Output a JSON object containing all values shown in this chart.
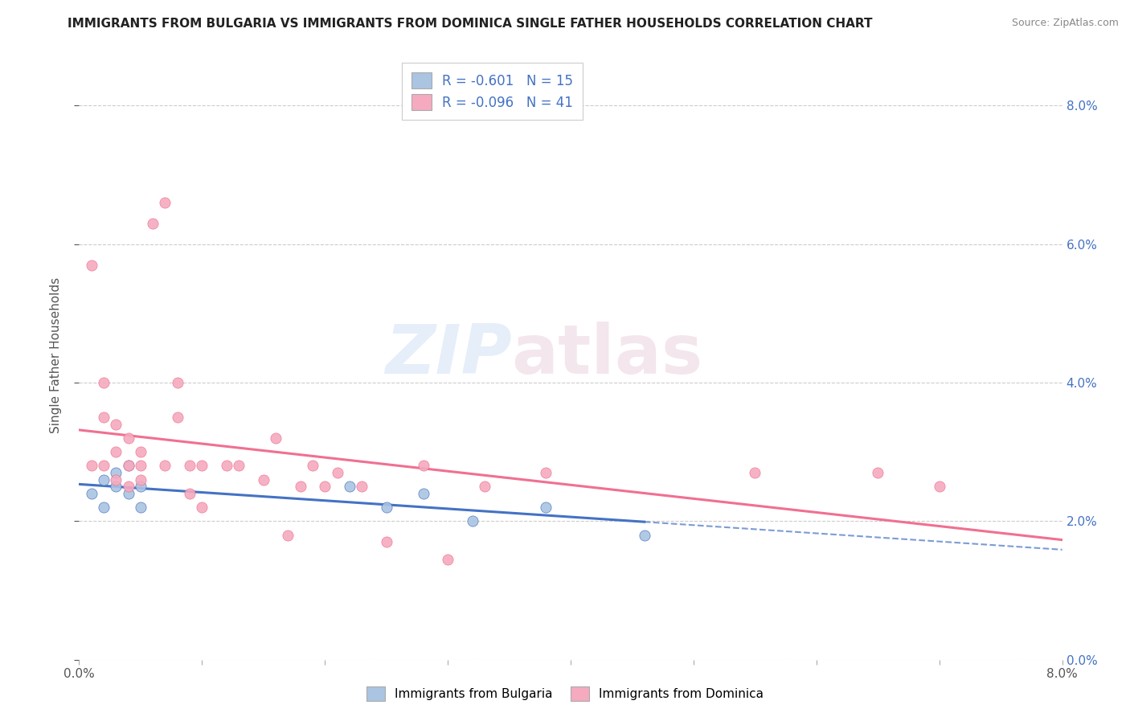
{
  "title": "IMMIGRANTS FROM BULGARIA VS IMMIGRANTS FROM DOMINICA SINGLE FATHER HOUSEHOLDS CORRELATION CHART",
  "source": "Source: ZipAtlas.com",
  "ylabel": "Single Father Households",
  "legend_label1": "Immigrants from Bulgaria",
  "legend_label2": "Immigrants from Dominica",
  "R1": -0.601,
  "N1": 15,
  "R2": -0.096,
  "N2": 41,
  "color1": "#aac4e2",
  "color2": "#f5aabf",
  "line_color1": "#4472c4",
  "line_color2": "#f07090",
  "xlim": [
    0.0,
    0.08
  ],
  "ylim": [
    0.0,
    0.088
  ],
  "xticks": [
    0.0,
    0.01,
    0.02,
    0.03,
    0.04,
    0.05,
    0.06,
    0.07,
    0.08
  ],
  "yticks": [
    0.0,
    0.02,
    0.04,
    0.06,
    0.08
  ],
  "watermark_zip": "ZIP",
  "watermark_atlas": "atlas",
  "bg_color": "#ffffff",
  "grid_color": "#cccccc",
  "bulgaria_x": [
    0.001,
    0.002,
    0.002,
    0.003,
    0.003,
    0.004,
    0.004,
    0.005,
    0.005,
    0.022,
    0.025,
    0.028,
    0.032,
    0.038,
    0.046
  ],
  "bulgaria_y": [
    0.024,
    0.026,
    0.022,
    0.027,
    0.025,
    0.024,
    0.028,
    0.025,
    0.022,
    0.025,
    0.022,
    0.024,
    0.02,
    0.022,
    0.018
  ],
  "dominica_x": [
    0.001,
    0.001,
    0.002,
    0.002,
    0.002,
    0.003,
    0.003,
    0.003,
    0.004,
    0.004,
    0.004,
    0.005,
    0.005,
    0.005,
    0.006,
    0.007,
    0.007,
    0.008,
    0.008,
    0.009,
    0.009,
    0.01,
    0.01,
    0.012,
    0.013,
    0.015,
    0.016,
    0.017,
    0.018,
    0.019,
    0.02,
    0.021,
    0.023,
    0.025,
    0.028,
    0.03,
    0.033,
    0.038,
    0.055,
    0.065,
    0.07
  ],
  "dominica_y": [
    0.028,
    0.057,
    0.04,
    0.035,
    0.028,
    0.034,
    0.03,
    0.026,
    0.032,
    0.028,
    0.025,
    0.03,
    0.028,
    0.026,
    0.063,
    0.066,
    0.028,
    0.04,
    0.035,
    0.028,
    0.024,
    0.028,
    0.022,
    0.028,
    0.028,
    0.026,
    0.032,
    0.018,
    0.025,
    0.028,
    0.025,
    0.027,
    0.025,
    0.017,
    0.028,
    0.0145,
    0.025,
    0.027,
    0.027,
    0.027,
    0.025
  ]
}
